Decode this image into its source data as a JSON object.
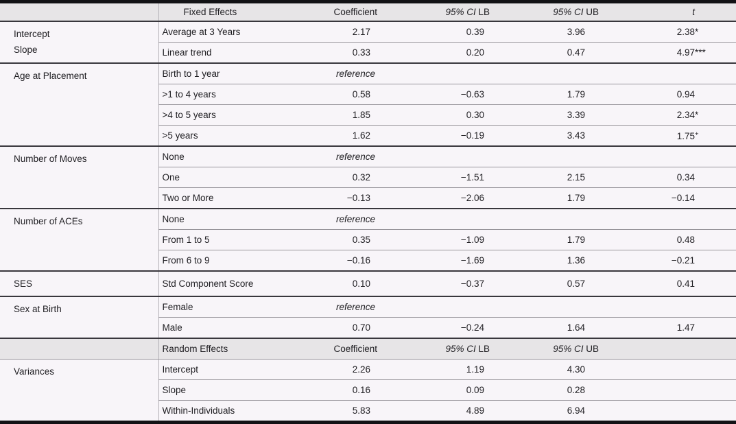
{
  "colors": {
    "bar": "#121215",
    "header_bg": "#e7e5e7",
    "row_bg": "#f8f5f9",
    "section_rule": "#39373d",
    "row_rule": "#97949a",
    "divider": "#b5b2b8",
    "text": "#1e1d21"
  },
  "fixed_header": {
    "label": "Fixed Effects",
    "coefficient": "Coefficient",
    "ci": "95% CI",
    "lb": "LB",
    "ub": "UB",
    "t": "t"
  },
  "random_header": {
    "label": "Random Effects",
    "coefficient": "Coefficient",
    "ci": "95% CI",
    "lb": "LB",
    "ub": "UB",
    "t": ""
  },
  "reference_label": "reference",
  "fixed_sections": [
    {
      "group": [
        "Intercept",
        "Slope"
      ],
      "rows": [
        {
          "label": "Average at 3 Years",
          "coef": "2.17",
          "lb": "0.39",
          "ub": "3.96",
          "t": "2.38",
          "mark": "*"
        },
        {
          "label": "Linear trend",
          "coef": "0.33",
          "lb": "0.20",
          "ub": "0.47",
          "t": "4.97",
          "mark": "***"
        }
      ]
    },
    {
      "group": [
        "Age at Placement"
      ],
      "rows": [
        {
          "label": "Birth to 1 year",
          "reference": true
        },
        {
          "label": ">1 to 4 years",
          "coef": "0.58",
          "lb": "−0.63",
          "ub": "1.79",
          "t": "0.94"
        },
        {
          "label": ">4 to 5 years",
          "coef": "1.85",
          "lb": "0.30",
          "ub": "3.39",
          "t": "2.34",
          "mark": "*"
        },
        {
          "label": ">5 years",
          "coef": "1.62",
          "lb": "−0.19",
          "ub": "3.43",
          "t": "1.75",
          "mark": "+",
          "mark_sup": true
        }
      ]
    },
    {
      "group": [
        "Number of Moves"
      ],
      "rows": [
        {
          "label": "None",
          "reference": true
        },
        {
          "label": "One",
          "coef": "0.32",
          "lb": "−1.51",
          "ub": "2.15",
          "t": "0.34"
        },
        {
          "label": "Two or More",
          "coef": "−0.13",
          "lb": "−2.06",
          "ub": "1.79",
          "t": "−0.14"
        }
      ]
    },
    {
      "group": [
        "Number of ACEs"
      ],
      "rows": [
        {
          "label": "None",
          "reference": true
        },
        {
          "label": "From 1 to 5",
          "coef": "0.35",
          "lb": "−1.09",
          "ub": "1.79",
          "t": "0.48"
        },
        {
          "label": "From 6 to 9",
          "coef": "−0.16",
          "lb": "−1.69",
          "ub": "1.36",
          "t": "−0.21"
        }
      ]
    },
    {
      "group": [
        "SES"
      ],
      "rows": [
        {
          "label": "Std Component Score",
          "coef": "0.10",
          "lb": "−0.37",
          "ub": "0.57",
          "t": "0.41"
        }
      ]
    },
    {
      "group": [
        "Sex at Birth"
      ],
      "rows": [
        {
          "label": "Female",
          "reference": true
        },
        {
          "label": "Male",
          "coef": "0.70",
          "lb": "−0.24",
          "ub": "1.64",
          "t": "1.47"
        }
      ]
    }
  ],
  "random_sections": [
    {
      "group": [
        "Variances"
      ],
      "rows": [
        {
          "label": "Intercept",
          "coef": "2.26",
          "lb": "1.19",
          "ub": "4.30"
        },
        {
          "label": "Slope",
          "coef": "0.16",
          "lb": "0.09",
          "ub": "0.28"
        },
        {
          "label": "Within-Individuals",
          "coef": "5.83",
          "lb": "4.89",
          "ub": "6.94"
        }
      ]
    }
  ]
}
